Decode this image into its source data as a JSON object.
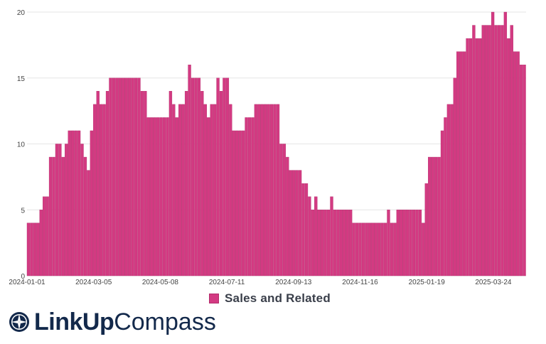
{
  "chart_data": {
    "type": "bar",
    "series": [
      {
        "name": "Sales and Related",
        "color": "#d33a82",
        "values": [
          4,
          4,
          4,
          4,
          5,
          6,
          6,
          9,
          9,
          10,
          10,
          9,
          10,
          11,
          11,
          11,
          11,
          10,
          9,
          8,
          11,
          13,
          14,
          13,
          13,
          14,
          15,
          15,
          15,
          15,
          15,
          15,
          15,
          15,
          15,
          15,
          14,
          14,
          12,
          12,
          12,
          12,
          12,
          12,
          12,
          14,
          13,
          12,
          13,
          13,
          14,
          16,
          15,
          15,
          15,
          14,
          13,
          12,
          13,
          13,
          15,
          14,
          15,
          15,
          13,
          11,
          11,
          11,
          11,
          12,
          12,
          12,
          13,
          13,
          13,
          13,
          13,
          13,
          13,
          13,
          10,
          10,
          9,
          8,
          8,
          8,
          8,
          7,
          7,
          6,
          5,
          6,
          5,
          5,
          5,
          5,
          6,
          5,
          5,
          5,
          5,
          5,
          5,
          4,
          4,
          4,
          4,
          4,
          4,
          4,
          4,
          4,
          4,
          4,
          5,
          4,
          4,
          5,
          5,
          5,
          5,
          5,
          5,
          5,
          5,
          4,
          7,
          9,
          9,
          9,
          9,
          11,
          12,
          13,
          13,
          15,
          17,
          17,
          17,
          18,
          18,
          19,
          18,
          18,
          19,
          19,
          19,
          20,
          19,
          19,
          19,
          20,
          18,
          19,
          17,
          17,
          16,
          16
        ]
      }
    ],
    "x_tick_labels": [
      "2024-01-01",
      "2024-03-05",
      "2024-05-08",
      "2024-07-11",
      "2024-09-13",
      "2024-11-16",
      "2025-01-19",
      "2025-03-24"
    ],
    "y_tick_labels": [
      "0",
      "5",
      "10",
      "15",
      "20"
    ],
    "ylim": [
      0,
      20
    ],
    "grid": "horizontal",
    "legend": "bottom-center"
  },
  "legend": {
    "label": "Sales and Related"
  },
  "branding": {
    "bold": "LinkUp",
    "light": "Compass"
  }
}
